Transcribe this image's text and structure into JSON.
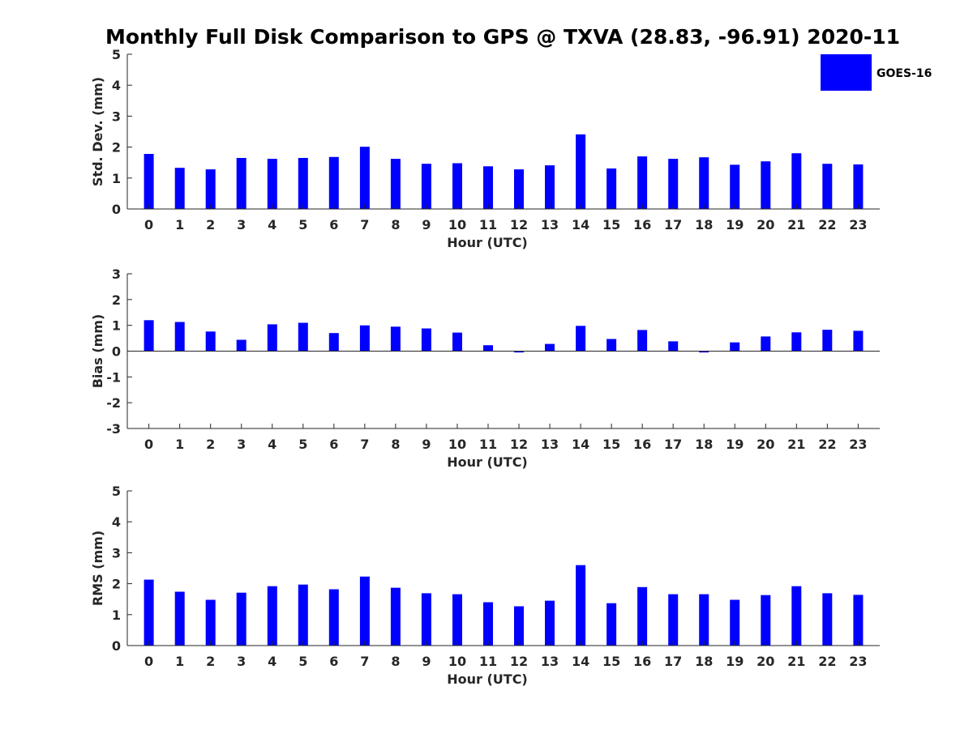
{
  "title": "Monthly Full Disk Comparison to GPS @ TXVA (28.83, -96.91) 2020-11",
  "legend": {
    "label": "GOES-16",
    "color": "#0000ff",
    "placement": "top-right"
  },
  "chart_data": [
    {
      "type": "bar",
      "title": "Monthly Full Disk Comparison to GPS @ TXVA (28.83, -96.91) 2020-11",
      "xlabel": "Hour (UTC)",
      "ylabel": "Std. Dev. (mm)",
      "categories": [
        "0",
        "1",
        "2",
        "3",
        "4",
        "5",
        "6",
        "7",
        "8",
        "9",
        "10",
        "11",
        "12",
        "13",
        "14",
        "15",
        "16",
        "17",
        "18",
        "19",
        "20",
        "21",
        "22",
        "23"
      ],
      "series": [
        {
          "name": "GOES-16",
          "color": "#0000ff",
          "values": [
            1.78,
            1.33,
            1.28,
            1.65,
            1.62,
            1.65,
            1.68,
            2.01,
            1.62,
            1.46,
            1.48,
            1.38,
            1.28,
            1.41,
            2.41,
            1.31,
            1.7,
            1.62,
            1.67,
            1.43,
            1.54,
            1.8,
            1.46,
            1.44
          ]
        }
      ],
      "ylim": [
        0,
        5
      ],
      "yticks": [
        0,
        1,
        2,
        3,
        4,
        5
      ],
      "grid": false
    },
    {
      "type": "bar",
      "xlabel": "Hour (UTC)",
      "ylabel": "Bias (mm)",
      "categories": [
        "0",
        "1",
        "2",
        "3",
        "4",
        "5",
        "6",
        "7",
        "8",
        "9",
        "10",
        "11",
        "12",
        "13",
        "14",
        "15",
        "16",
        "17",
        "18",
        "19",
        "20",
        "21",
        "22",
        "23"
      ],
      "series": [
        {
          "name": "GOES-16",
          "color": "#0000ff",
          "values": [
            1.2,
            1.13,
            0.76,
            0.44,
            1.04,
            1.1,
            0.7,
            1.0,
            0.95,
            0.88,
            0.72,
            0.23,
            -0.05,
            0.28,
            0.98,
            0.47,
            0.82,
            0.38,
            -0.05,
            0.34,
            0.57,
            0.73,
            0.83,
            0.79
          ]
        }
      ],
      "ylim": [
        -3,
        3
      ],
      "yticks": [
        -3,
        -2,
        -1,
        0,
        1,
        2,
        3
      ],
      "grid": false
    },
    {
      "type": "bar",
      "xlabel": "Hour (UTC)",
      "ylabel": "RMS (mm)",
      "categories": [
        "0",
        "1",
        "2",
        "3",
        "4",
        "5",
        "6",
        "7",
        "8",
        "9",
        "10",
        "11",
        "12",
        "13",
        "14",
        "15",
        "16",
        "17",
        "18",
        "19",
        "20",
        "21",
        "22",
        "23"
      ],
      "series": [
        {
          "name": "GOES-16",
          "color": "#0000ff",
          "values": [
            2.13,
            1.74,
            1.48,
            1.71,
            1.92,
            1.97,
            1.82,
            2.23,
            1.87,
            1.69,
            1.66,
            1.4,
            1.27,
            1.45,
            2.6,
            1.37,
            1.89,
            1.66,
            1.66,
            1.48,
            1.63,
            1.92,
            1.69,
            1.64
          ]
        }
      ],
      "ylim": [
        0,
        5
      ],
      "yticks": [
        0,
        1,
        2,
        3,
        4,
        5
      ],
      "grid": false
    }
  ]
}
